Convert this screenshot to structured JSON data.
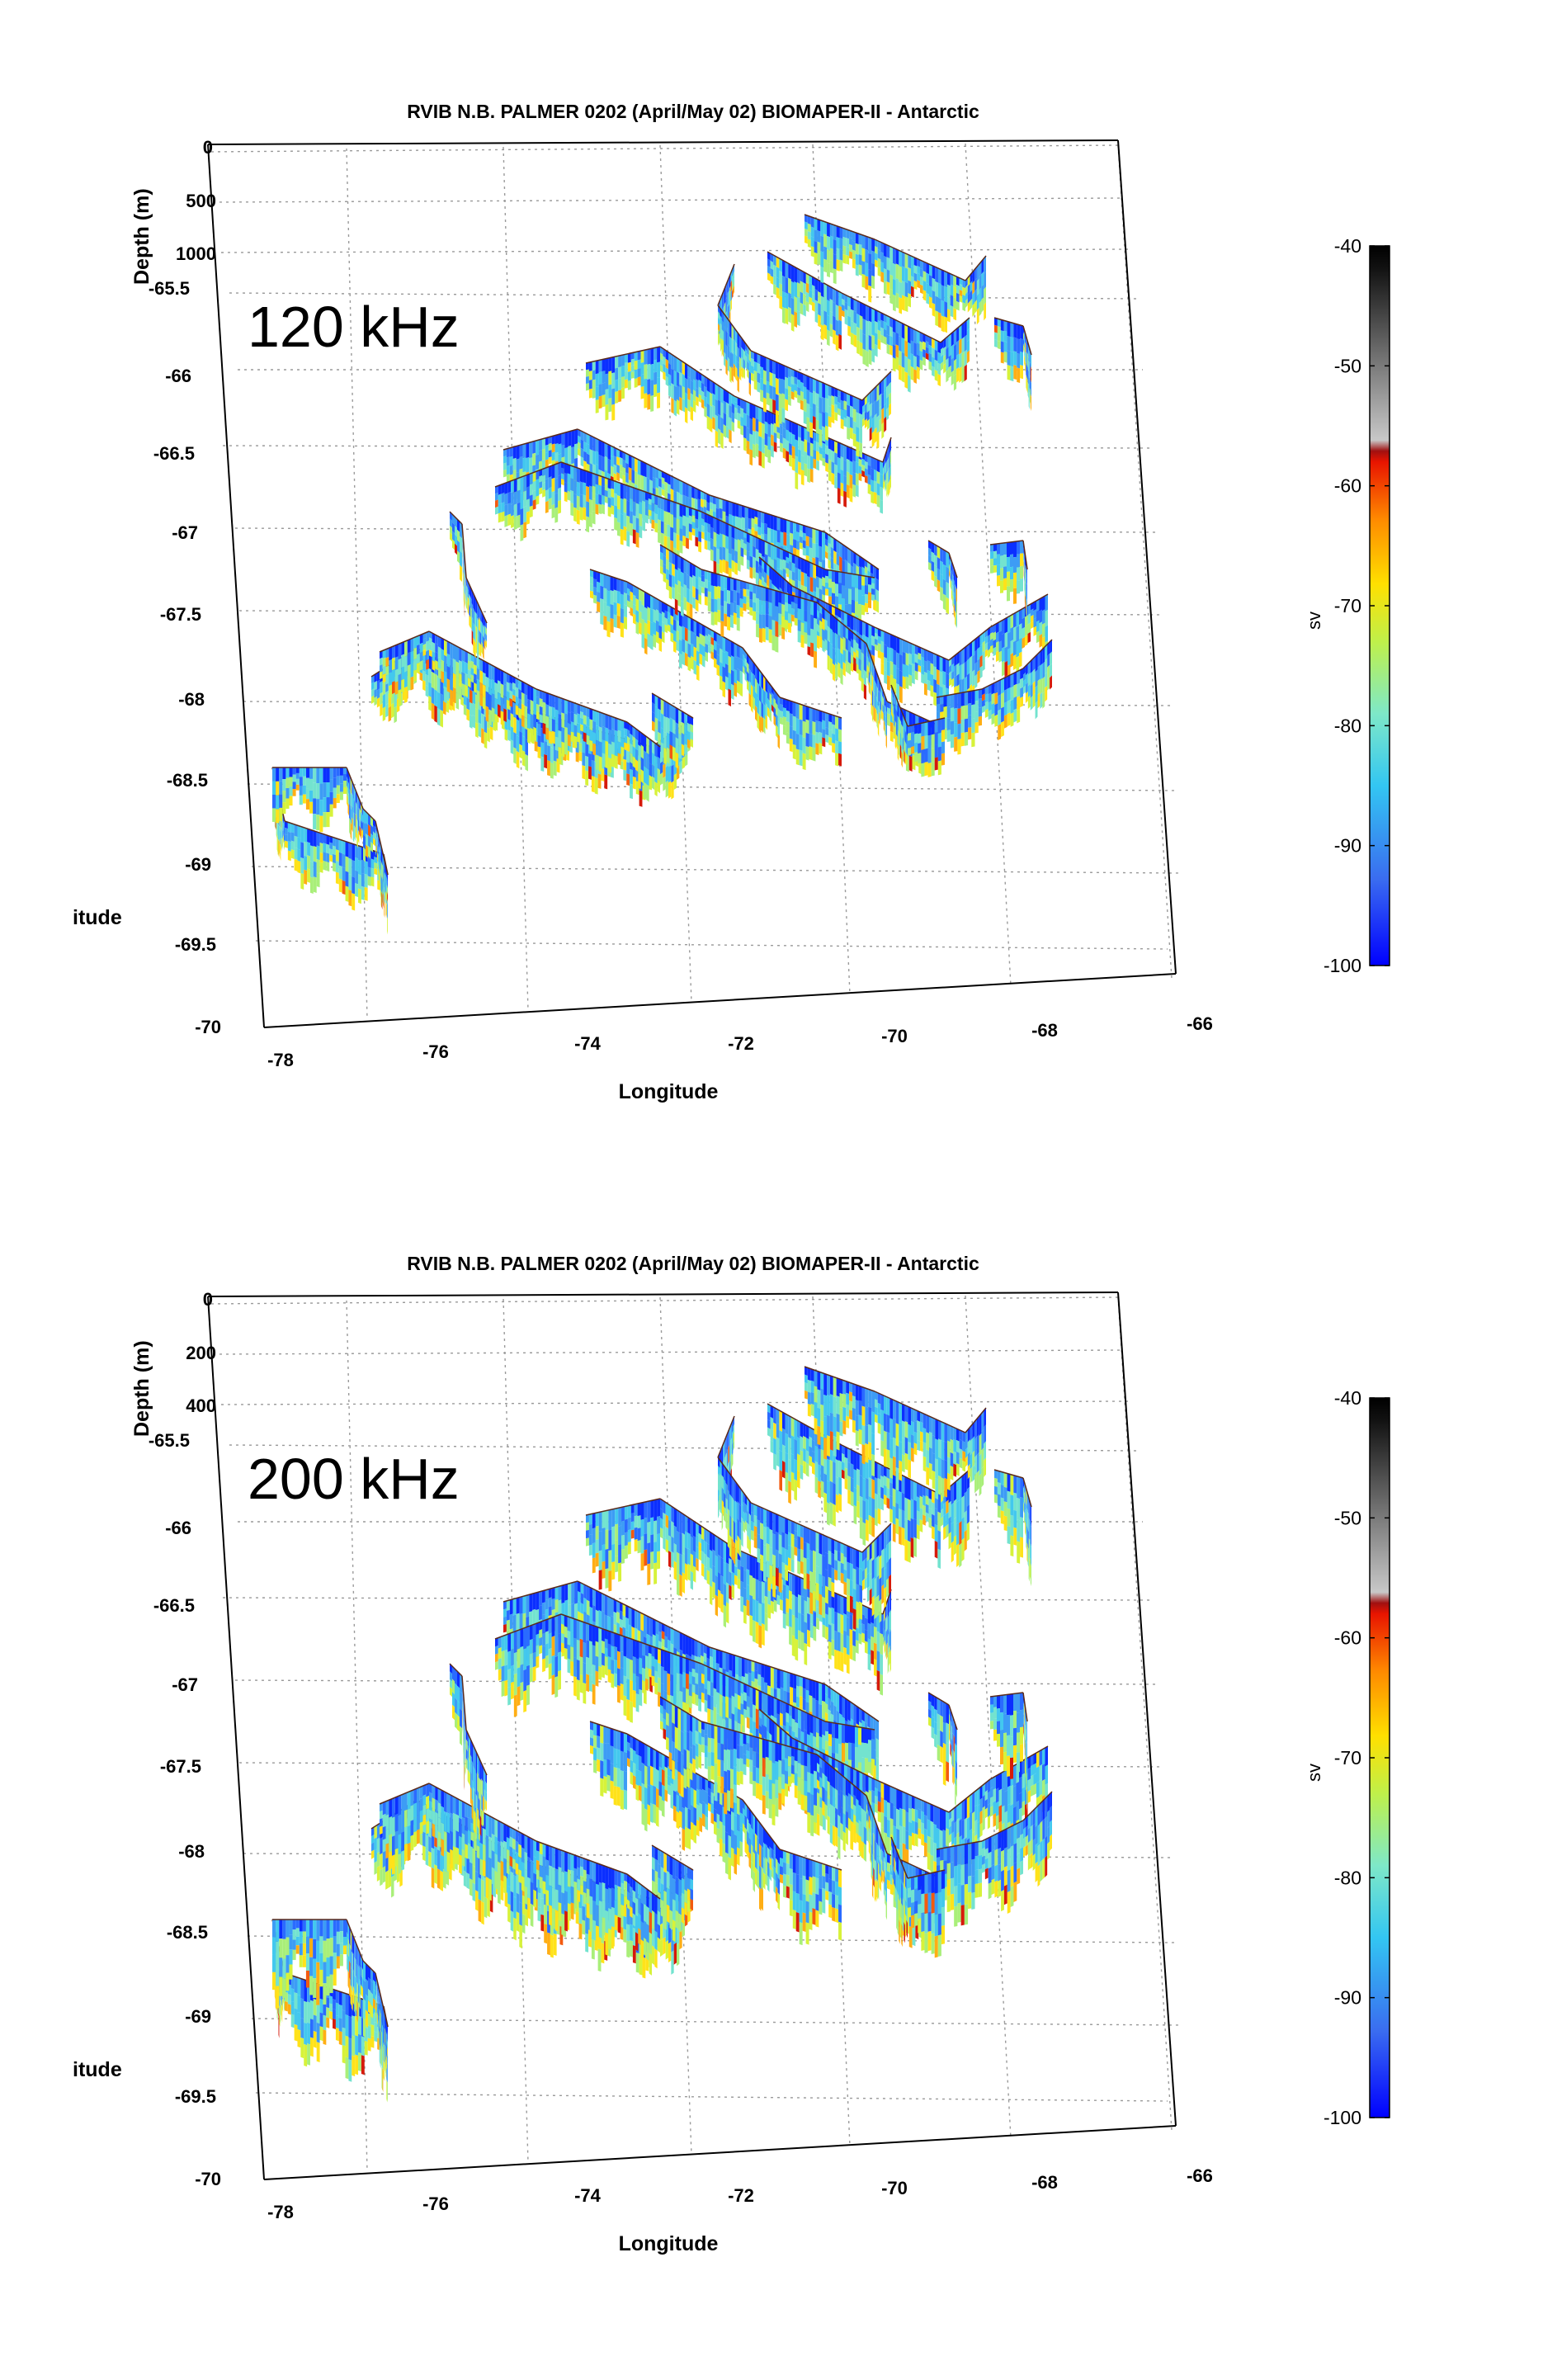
{
  "chart_data": [
    {
      "type": "3d-echogram-curtains",
      "title": "RVIB N.B. PALMER 0202 (April/May 02) BIOMAPER-II - Antarctic",
      "annotation": "120 kHz",
      "xlabel": "Longitude",
      "ylabel": "itude",
      "zlabel": "Depth (m)",
      "x_ticks": [
        "-78",
        "-76",
        "-74",
        "-72",
        "-70",
        "-68",
        "-66"
      ],
      "y_ticks": [
        "-65.5",
        "-66",
        "-66.5",
        "-67",
        "-67.5",
        "-68",
        "-68.5",
        "-69",
        "-69.5",
        "-70"
      ],
      "z_ticks": [
        "0",
        "500",
        "1000"
      ],
      "xlim": [
        -78,
        -66
      ],
      "ylim": [
        -70,
        -65.5
      ],
      "zlim": [
        0,
        1000
      ],
      "grid": true,
      "colorbar": {
        "label": "sv",
        "ticks": [
          "-40",
          "-50",
          "-60",
          "-70",
          "-80",
          "-90",
          "-100"
        ],
        "range": [
          -100,
          -40
        ],
        "colormap": "jet-with-gray-black-top"
      }
    },
    {
      "type": "3d-echogram-curtains",
      "title": "RVIB N.B. PALMER 0202 (April/May 02) BIOMAPER-II - Antarctic",
      "annotation": "200 kHz",
      "xlabel": "Longitude",
      "ylabel": "itude",
      "zlabel": "Depth (m)",
      "x_ticks": [
        "-78",
        "-76",
        "-74",
        "-72",
        "-70",
        "-68",
        "-66"
      ],
      "y_ticks": [
        "-65.5",
        "-66",
        "-66.5",
        "-67",
        "-67.5",
        "-68",
        "-68.5",
        "-69",
        "-69.5",
        "-70"
      ],
      "z_ticks": [
        "0",
        "200",
        "400"
      ],
      "xlim": [
        -78,
        -66
      ],
      "ylim": [
        -70,
        -65.5
      ],
      "zlim": [
        0,
        400
      ],
      "grid": true,
      "colorbar": {
        "label": "sv",
        "ticks": [
          "-40",
          "-50",
          "-60",
          "-70",
          "-80",
          "-90",
          "-100"
        ],
        "range": [
          -100,
          -40
        ],
        "colormap": "jet-with-gray-black-top"
      }
    }
  ]
}
